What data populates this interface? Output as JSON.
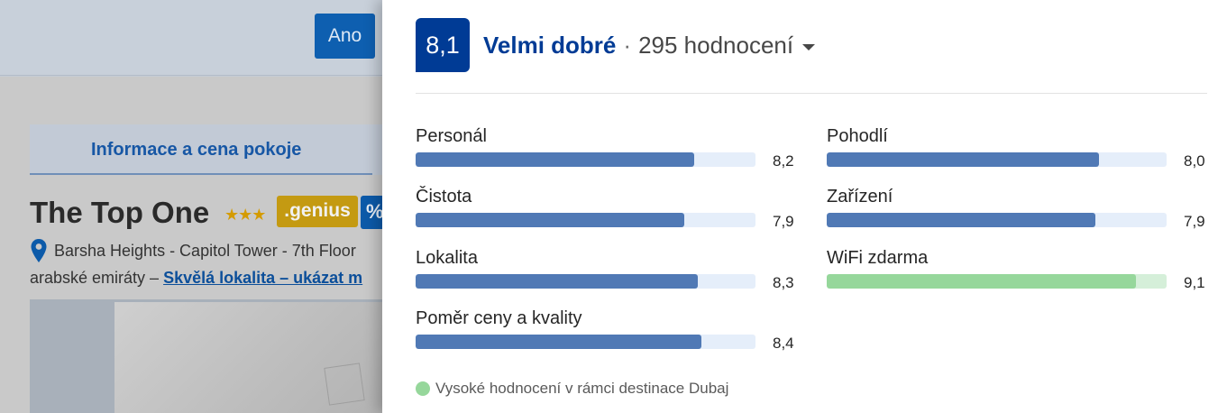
{
  "background": {
    "yes_button": "Ano",
    "tab_label": "Informace a cena pokoje",
    "hotel_name": "The Top One",
    "stars": "★★★",
    "genius_badge": ".genius",
    "percent_badge": "%",
    "address_line1": "Barsha Heights - Capitol Tower - 7th Floor",
    "address_line2_prefix": "arabské emiráty – ",
    "address_link": "Skvělá lokalita – ukázat m"
  },
  "rating": {
    "score": "8,1",
    "label": "Velmi dobré",
    "separator": "·",
    "review_count": "295 hodnocení",
    "accent_color": "#003b95",
    "bar_color": "#5079b5",
    "highlight_color": "#96d79b"
  },
  "categories": [
    {
      "label": "Personál",
      "value": "8,2",
      "score": 8.2,
      "highlight": false
    },
    {
      "label": "Čistota",
      "value": "7,9",
      "score": 7.9,
      "highlight": false
    },
    {
      "label": "Lokalita",
      "value": "8,3",
      "score": 8.3,
      "highlight": false
    },
    {
      "label": "Poměr ceny a kvality",
      "value": "8,4",
      "score": 8.4,
      "highlight": false
    },
    {
      "label": "Pohodlí",
      "value": "8,0",
      "score": 8.0,
      "highlight": false
    },
    {
      "label": "Zařízení",
      "value": "7,9",
      "score": 7.9,
      "highlight": false
    },
    {
      "label": "WiFi zdarma",
      "value": "9,1",
      "score": 9.1,
      "highlight": true
    }
  ],
  "footnote": "Vysoké hodnocení v rámci destinace Dubaj"
}
